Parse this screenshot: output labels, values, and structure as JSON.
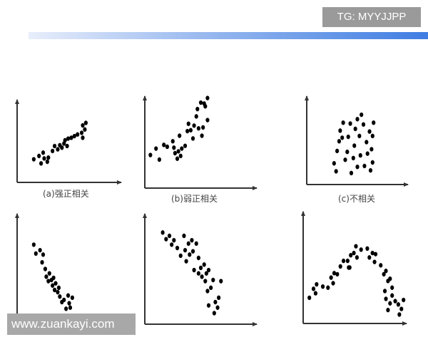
{
  "watermarks": {
    "top_right": "TG: MYYJJPP",
    "bottom_left": "www.zuankayi.com"
  },
  "colors": {
    "points": "#000000",
    "axes": "#333333",
    "header_bar_end": "#3f7de2"
  },
  "chart_data": [
    {
      "type": "scatter",
      "title": "(a)强正相关",
      "xlim": [
        0,
        10
      ],
      "ylim": [
        0,
        10
      ],
      "grid": false,
      "points": [
        [
          1.6,
          2.8
        ],
        [
          2.1,
          3.2
        ],
        [
          2.3,
          2.3
        ],
        [
          2.6,
          2.9
        ],
        [
          2.5,
          3.6
        ],
        [
          2.9,
          2.5
        ],
        [
          3.0,
          3.0
        ],
        [
          3.4,
          3.8
        ],
        [
          3.6,
          4.4
        ],
        [
          3.9,
          4.0
        ],
        [
          4.1,
          4.5
        ],
        [
          4.3,
          4.2
        ],
        [
          4.5,
          4.7
        ],
        [
          4.6,
          5.1
        ],
        [
          4.8,
          4.4
        ],
        [
          4.9,
          5.3
        ],
        [
          5.2,
          5.4
        ],
        [
          5.5,
          5.6
        ],
        [
          5.8,
          5.8
        ],
        [
          6.2,
          6.0
        ],
        [
          6.3,
          6.9
        ],
        [
          6.5,
          6.4
        ],
        [
          6.6,
          7.2
        ],
        [
          6.3,
          5.4
        ]
      ]
    },
    {
      "type": "scatter",
      "title": "(b)弱正相关",
      "xlim": [
        0,
        10
      ],
      "ylim": [
        0,
        10
      ],
      "grid": false,
      "points": [
        [
          0.5,
          3.6
        ],
        [
          1.0,
          4.3
        ],
        [
          1.3,
          3.1
        ],
        [
          1.7,
          4.7
        ],
        [
          2.0,
          4.5
        ],
        [
          2.6,
          4.4
        ],
        [
          2.5,
          5.1
        ],
        [
          2.7,
          3.8
        ],
        [
          2.9,
          3.2
        ],
        [
          3.0,
          4.0
        ],
        [
          3.2,
          3.5
        ],
        [
          3.3,
          4.3
        ],
        [
          3.1,
          5.7
        ],
        [
          3.6,
          4.6
        ],
        [
          3.8,
          6.2
        ],
        [
          3.9,
          7.0
        ],
        [
          4.1,
          6.3
        ],
        [
          4.3,
          5.4
        ],
        [
          4.4,
          6.8
        ],
        [
          4.6,
          7.8
        ],
        [
          4.8,
          6.5
        ],
        [
          5.1,
          5.7
        ],
        [
          5.2,
          6.6
        ],
        [
          4.7,
          8.6
        ],
        [
          5.0,
          9.3
        ],
        [
          5.3,
          9.2
        ],
        [
          5.4,
          8.9
        ],
        [
          5.6,
          9.8
        ],
        [
          5.6,
          7.4
        ]
      ]
    },
    {
      "type": "scatter",
      "title": "(c)不相关",
      "xlim": [
        0,
        10
      ],
      "ylim": [
        0,
        10
      ],
      "grid": false,
      "points": [
        [
          2.7,
          2.4
        ],
        [
          2.9,
          1.5
        ],
        [
          3.0,
          3.8
        ],
        [
          3.3,
          6.1
        ],
        [
          3.5,
          5.3
        ],
        [
          3.6,
          7.0
        ],
        [
          3.2,
          4.9
        ],
        [
          3.8,
          2.8
        ],
        [
          4.0,
          3.7
        ],
        [
          4.1,
          5.4
        ],
        [
          4.3,
          6.9
        ],
        [
          4.4,
          1.3
        ],
        [
          4.6,
          3.0
        ],
        [
          4.7,
          4.4
        ],
        [
          4.8,
          6.3
        ],
        [
          5.0,
          7.4
        ],
        [
          5.0,
          2.0
        ],
        [
          5.2,
          5.5
        ],
        [
          5.3,
          3.3
        ],
        [
          5.4,
          7.9
        ],
        [
          5.6,
          6.8
        ],
        [
          5.7,
          2.1
        ],
        [
          5.9,
          4.8
        ],
        [
          6.0,
          3.5
        ],
        [
          6.2,
          6.0
        ],
        [
          6.3,
          1.6
        ],
        [
          6.4,
          4.0
        ],
        [
          6.5,
          5.5
        ],
        [
          6.6,
          7.0
        ],
        [
          6.5,
          2.5
        ]
      ]
    },
    {
      "type": "scatter",
      "title": "",
      "xlim": [
        0,
        10
      ],
      "ylim": [
        0,
        10
      ],
      "grid": false,
      "points": [
        [
          1.6,
          7.2
        ],
        [
          1.8,
          6.4
        ],
        [
          2.2,
          6.7
        ],
        [
          2.5,
          6.3
        ],
        [
          2.4,
          5.6
        ],
        [
          2.7,
          5.0
        ],
        [
          2.8,
          4.3
        ],
        [
          3.0,
          3.9
        ],
        [
          3.1,
          4.6
        ],
        [
          3.3,
          4.0
        ],
        [
          3.4,
          3.5
        ],
        [
          3.5,
          4.2
        ],
        [
          3.6,
          3.1
        ],
        [
          3.7,
          3.7
        ],
        [
          3.9,
          2.9
        ],
        [
          4.0,
          3.3
        ],
        [
          4.1,
          2.5
        ],
        [
          4.3,
          2.0
        ],
        [
          4.5,
          2.2
        ],
        [
          4.7,
          1.4
        ],
        [
          4.9,
          2.6
        ],
        [
          5.0,
          1.9
        ],
        [
          5.1,
          1.5
        ],
        [
          5.3,
          2.4
        ],
        [
          4.8,
          0.6
        ]
      ]
    },
    {
      "type": "scatter",
      "title": "",
      "xlim": [
        0,
        10
      ],
      "ylim": [
        0,
        10
      ],
      "grid": false,
      "points": [
        [
          1.6,
          8.3
        ],
        [
          1.9,
          7.7
        ],
        [
          2.2,
          8.0
        ],
        [
          2.4,
          7.2
        ],
        [
          2.6,
          7.6
        ],
        [
          2.9,
          6.9
        ],
        [
          3.2,
          6.2
        ],
        [
          3.5,
          8.0
        ],
        [
          3.6,
          6.7
        ],
        [
          3.7,
          5.7
        ],
        [
          3.9,
          7.3
        ],
        [
          4.0,
          6.3
        ],
        [
          4.2,
          7.6
        ],
        [
          4.3,
          6.6
        ],
        [
          4.4,
          4.9
        ],
        [
          4.6,
          7.3
        ],
        [
          4.8,
          6.0
        ],
        [
          4.8,
          4.6
        ],
        [
          5.0,
          5.1
        ],
        [
          5.1,
          4.3
        ],
        [
          5.3,
          5.4
        ],
        [
          5.4,
          3.9
        ],
        [
          5.5,
          4.6
        ],
        [
          5.6,
          3.0
        ],
        [
          5.7,
          4.9
        ],
        [
          5.9,
          3.3
        ],
        [
          6.1,
          4.0
        ],
        [
          6.3,
          2.0
        ],
        [
          6.5,
          1.5
        ],
        [
          6.6,
          2.4
        ],
        [
          6.8,
          3.9
        ],
        [
          5.7,
          1.7
        ],
        [
          6.2,
          1.0
        ]
      ]
    },
    {
      "type": "scatter",
      "title": "",
      "xlim": [
        0,
        10
      ],
      "ylim": [
        0,
        10
      ],
      "grid": false,
      "points": [
        [
          0.6,
          2.3
        ],
        [
          1.0,
          3.1
        ],
        [
          1.3,
          3.5
        ],
        [
          1.2,
          2.7
        ],
        [
          1.9,
          3.3
        ],
        [
          2.4,
          3.2
        ],
        [
          2.7,
          4.1
        ],
        [
          3.0,
          4.5
        ],
        [
          2.9,
          3.6
        ],
        [
          3.3,
          4.4
        ],
        [
          3.6,
          5.1
        ],
        [
          3.9,
          5.6
        ],
        [
          4.3,
          5.6
        ],
        [
          4.4,
          5.0
        ],
        [
          4.6,
          6.1
        ],
        [
          4.5,
          5.0
        ],
        [
          4.9,
          6.3
        ],
        [
          5.1,
          6.9
        ],
        [
          5.2,
          5.9
        ],
        [
          5.6,
          6.6
        ],
        [
          6.2,
          6.7
        ],
        [
          6.4,
          5.9
        ],
        [
          6.7,
          6.3
        ],
        [
          7.0,
          6.2
        ],
        [
          6.9,
          5.5
        ],
        [
          7.5,
          5.2
        ],
        [
          7.8,
          4.4
        ],
        [
          8.0,
          4.7
        ],
        [
          8.2,
          3.8
        ],
        [
          8.4,
          4.0
        ],
        [
          8.6,
          3.2
        ],
        [
          7.9,
          2.9
        ],
        [
          8.0,
          2.2
        ],
        [
          8.4,
          1.8
        ],
        [
          8.6,
          2.5
        ],
        [
          8.9,
          2.0
        ],
        [
          9.2,
          1.7
        ],
        [
          9.5,
          1.3
        ],
        [
          9.7,
          2.1
        ],
        [
          9.3,
          0.8
        ],
        [
          8.2,
          1.2
        ]
      ]
    }
  ]
}
